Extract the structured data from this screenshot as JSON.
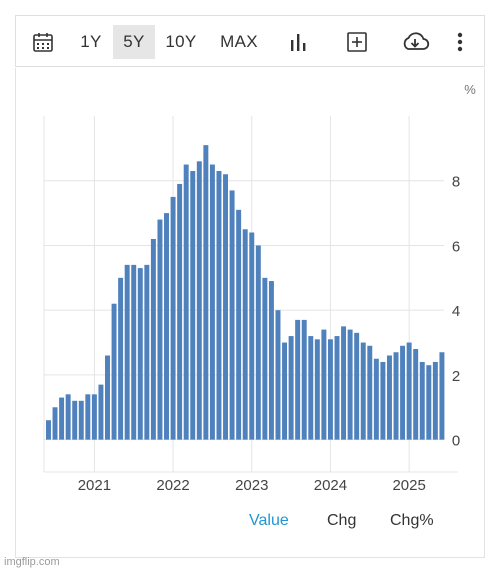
{
  "toolbar": {
    "ranges": [
      "1Y",
      "5Y",
      "10Y",
      "MAX"
    ],
    "active_range": "5Y",
    "icons": [
      "calendar-icon",
      "bar-chart-icon",
      "add-box-icon",
      "cloud-download-icon",
      "more-vert-icon"
    ]
  },
  "tabs": {
    "value": "Value",
    "chg": "Chg",
    "chg_pct": "Chg%",
    "active": "Value"
  },
  "watermark": "imgflip.com",
  "colors": {
    "bar": "#4f81bd",
    "active_tab": "#2196d3",
    "grid": "#e4e4e4"
  },
  "chart_data": {
    "type": "bar",
    "unit_label": "%",
    "x_ticks": [
      "2021",
      "2022",
      "2023",
      "2024",
      "2025"
    ],
    "y_ticks": [
      "0",
      "2",
      "4",
      "6",
      "8"
    ],
    "ylim": [
      -1,
      10
    ],
    "grid": true,
    "categories": [
      "2020-06",
      "2020-07",
      "2020-08",
      "2020-09",
      "2020-10",
      "2020-11",
      "2020-12",
      "2021-01",
      "2021-02",
      "2021-03",
      "2021-04",
      "2021-05",
      "2021-06",
      "2021-07",
      "2021-08",
      "2021-09",
      "2021-10",
      "2021-11",
      "2021-12",
      "2022-01",
      "2022-02",
      "2022-03",
      "2022-04",
      "2022-05",
      "2022-06",
      "2022-07",
      "2022-08",
      "2022-09",
      "2022-10",
      "2022-11",
      "2022-12",
      "2023-01",
      "2023-02",
      "2023-03",
      "2023-04",
      "2023-05",
      "2023-06",
      "2023-07",
      "2023-08",
      "2023-09",
      "2023-10",
      "2023-11",
      "2023-12",
      "2024-01",
      "2024-02",
      "2024-03",
      "2024-04",
      "2024-05",
      "2024-06",
      "2024-07",
      "2024-08",
      "2024-09",
      "2024-10",
      "2024-11",
      "2024-12",
      "2025-01",
      "2025-02",
      "2025-03",
      "2025-04",
      "2025-05",
      "2025-06"
    ],
    "values": [
      0.6,
      1.0,
      1.3,
      1.4,
      1.2,
      1.2,
      1.4,
      1.4,
      1.7,
      2.6,
      4.2,
      5.0,
      5.4,
      5.4,
      5.3,
      5.4,
      6.2,
      6.8,
      7.0,
      7.5,
      7.9,
      8.5,
      8.3,
      8.6,
      9.1,
      8.5,
      8.3,
      8.2,
      7.7,
      7.1,
      6.5,
      6.4,
      6.0,
      5.0,
      4.9,
      4.0,
      3.0,
      3.2,
      3.7,
      3.7,
      3.2,
      3.1,
      3.4,
      3.1,
      3.2,
      3.5,
      3.4,
      3.3,
      3.0,
      2.9,
      2.5,
      2.4,
      2.6,
      2.7,
      2.9,
      3.0,
      2.8,
      2.4,
      2.3,
      2.4,
      2.7
    ]
  }
}
